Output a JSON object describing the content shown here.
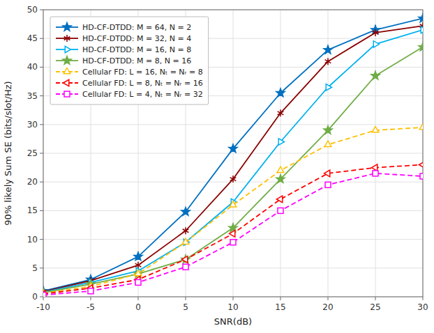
{
  "chart_data": {
    "type": "line",
    "x_label": "SNR(dB)",
    "y_label": "90% likely Sum SE (bits/slot/Hz)",
    "x": [
      -10,
      -5,
      0,
      5,
      10,
      15,
      20,
      25,
      30
    ],
    "series": [
      {
        "name": "HD-CF-DTDD: M = 64, N = 2",
        "color": "#0070C0",
        "marker": "star",
        "line_style": "solid",
        "values": [
          1.0,
          3.0,
          7.0,
          14.8,
          25.8,
          35.5,
          43.0,
          46.5,
          48.5
        ]
      },
      {
        "name": "HD-CF-DTDD: M = 32, N = 4",
        "color": "#8B0000",
        "marker": "asterisk",
        "line_style": "solid",
        "values": [
          0.9,
          2.8,
          5.5,
          11.5,
          20.5,
          32.0,
          41.0,
          46.0,
          47.2
        ]
      },
      {
        "name": "HD-CF-DTDD: M = 16, N = 8",
        "color": "#00B0F0",
        "marker": "triangle-right",
        "line_style": "solid",
        "values": [
          0.8,
          2.5,
          4.5,
          9.5,
          16.5,
          27.0,
          36.5,
          44.0,
          46.5
        ]
      },
      {
        "name": "HD-CF-DTDD: M = 8, N = 16",
        "color": "#70AD47",
        "marker": "star",
        "line_style": "solid",
        "values": [
          0.7,
          2.2,
          4.0,
          6.5,
          12.0,
          20.5,
          29.0,
          38.5,
          43.5
        ]
      },
      {
        "name": "Cellular FD: L = 16, Nₜ = Nᵣ = 8",
        "color": "#FFC000",
        "marker": "triangle-up",
        "line_style": "dashed",
        "values": [
          0.6,
          1.8,
          4.0,
          9.5,
          16.0,
          22.0,
          26.5,
          29.0,
          29.5
        ]
      },
      {
        "name": "Cellular FD: L = 8, Nₜ = Nᵣ = 16",
        "color": "#FF0000",
        "marker": "triangle-left",
        "line_style": "dashed",
        "values": [
          0.5,
          1.5,
          3.0,
          6.5,
          11.0,
          17.0,
          21.5,
          22.5,
          23.0
        ]
      },
      {
        "name": "Cellular FD: L = 4, Nₜ = Nᵣ = 32",
        "color": "#FF00FF",
        "marker": "square",
        "line_style": "dashed",
        "values": [
          0.3,
          1.0,
          2.5,
          5.2,
          9.5,
          15.0,
          19.5,
          21.5,
          21.0
        ]
      }
    ],
    "xlim": [
      -10,
      30
    ],
    "ylim": [
      0,
      50
    ],
    "xticks": [
      -10,
      -5,
      0,
      5,
      10,
      15,
      20,
      25,
      30
    ],
    "yticks": [
      0,
      5,
      10,
      15,
      20,
      25,
      30,
      35,
      40,
      45,
      50
    ],
    "grid": true,
    "legend": "upper-left"
  }
}
